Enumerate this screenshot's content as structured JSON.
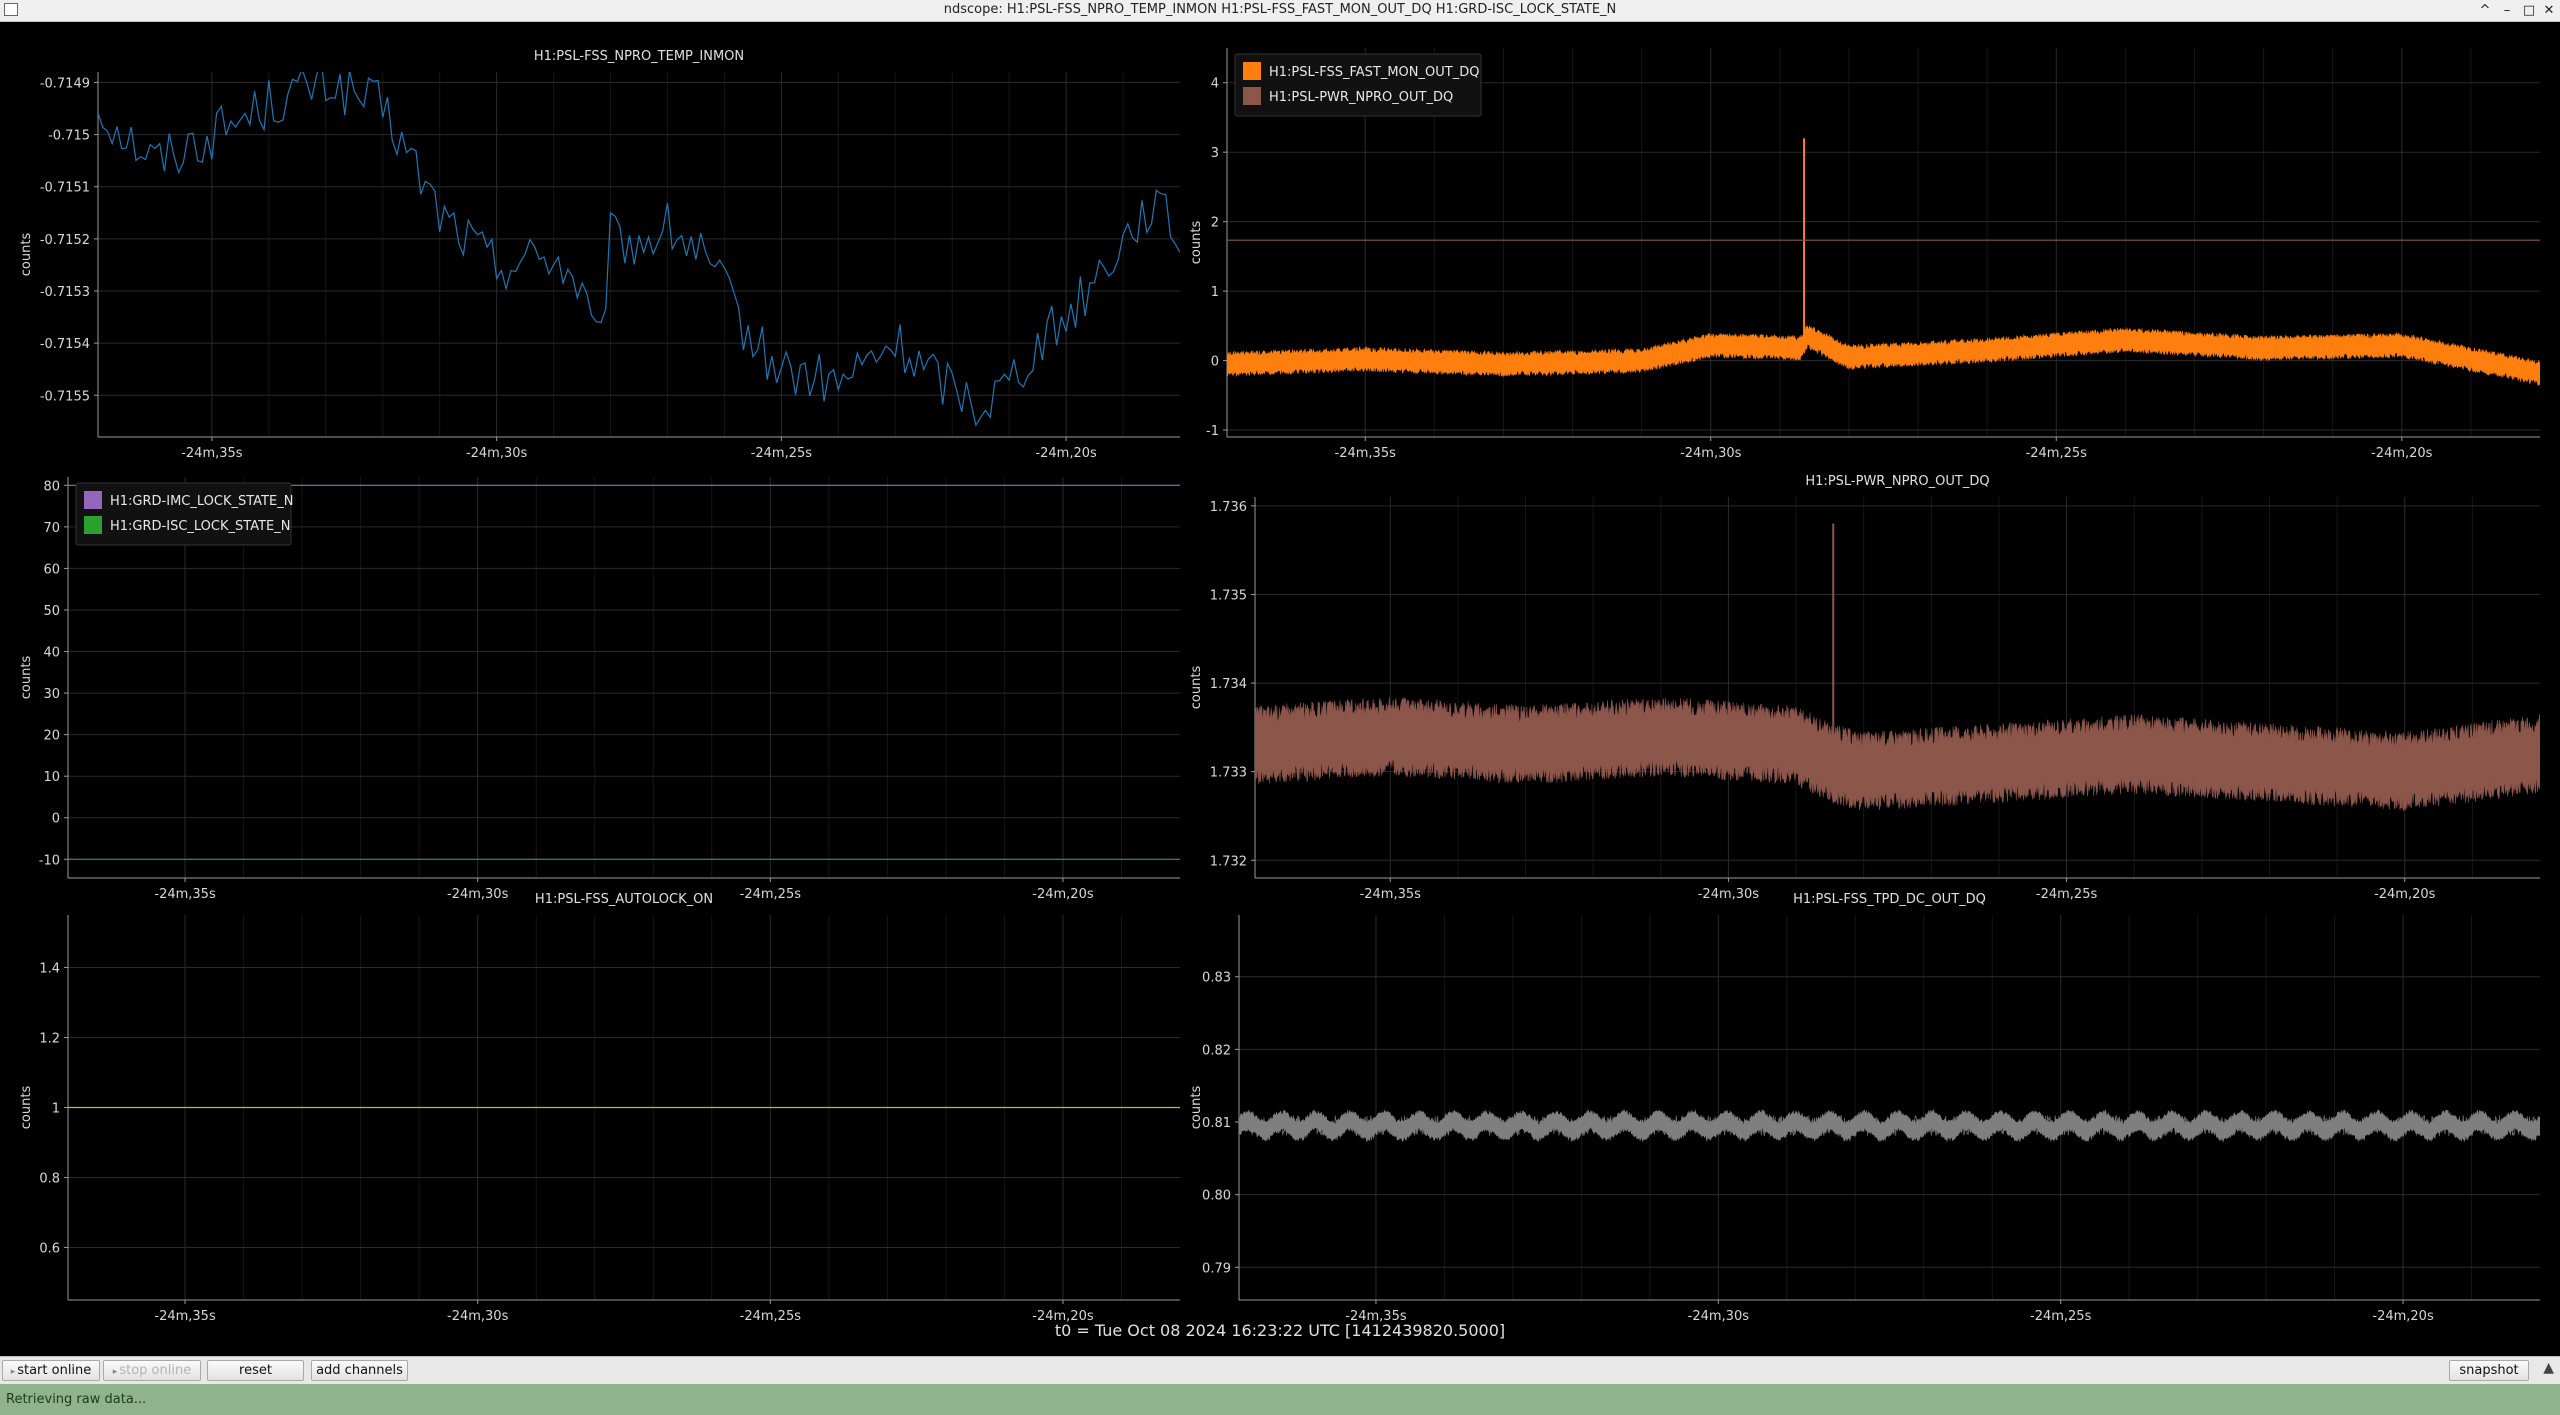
{
  "window": {
    "title": "ndscope: H1:PSL-FSS_NPRO_TEMP_INMON H1:PSL-FSS_FAST_MON_OUT_DQ H1:GRD-ISC_LOCK_STATE_N",
    "minimize": "–",
    "maximize": "□",
    "close": "✕",
    "collapse": "^"
  },
  "footer": {
    "t0": "t0 = Tue Oct 08 2024 16:23:22 UTC [1412439820.5000]"
  },
  "toolbar": {
    "start_online": "start online",
    "stop_online": "stop online",
    "reset": "reset",
    "add_channels": "add channels",
    "snapshot": "snapshot"
  },
  "status": {
    "message": "Retrieving raw data..."
  },
  "colors": {
    "blue": "#1f77b4",
    "orange": "#ff7f0e",
    "brown": "#8c564b",
    "purple": "#9467bd",
    "green": "#2ca02c",
    "olive": "#bcbd22",
    "gray": "#7f7f7f"
  },
  "chart_data": [
    {
      "type": "line",
      "title": "H1:PSL-FSS_NPRO_TEMP_INMON",
      "ylabel": "counts",
      "ylim": [
        -0.71558,
        -0.71488
      ],
      "yticks": [
        -0.7149,
        -0.715,
        -0.7151,
        -0.7152,
        -0.7153,
        -0.7154,
        -0.7155
      ],
      "ytick_labels": [
        "-0.7149",
        "-0.715",
        "-0.7151",
        "-0.7152",
        "-0.7153",
        "-0.7154",
        "-0.7155"
      ],
      "xlim": [
        -1477.0,
        -1458.0
      ],
      "xticks": [
        -1475,
        -1470,
        -1465,
        -1460
      ],
      "xtick_labels": [
        "-24m,35s",
        "-24m,30s",
        "-24m,25s",
        "-24m,20s"
      ],
      "grid": true,
      "series": [
        {
          "name": "",
          "color": "blue",
          "style": "line",
          "x": [
            -1477.0,
            -1476.0,
            -1475.0,
            -1474.0,
            -1473.0,
            -1472.0,
            -1471.5,
            -1471.0,
            -1470.5,
            -1470.0,
            -1469.0,
            -1468.5,
            -1468.2,
            -1468.0,
            -1467.5,
            -1467.0,
            -1466.5,
            -1466.0,
            -1465.5,
            -1465.0,
            -1464.0,
            -1463.0,
            -1462.5,
            -1462.0,
            -1461.5,
            -1461.0,
            -1460.5,
            -1460.0,
            -1459.0,
            -1458.5,
            -1458.0
          ],
          "y": [
            -0.71495,
            -0.71505,
            -0.715,
            -0.71494,
            -0.7149,
            -0.71495,
            -0.71505,
            -0.71515,
            -0.7152,
            -0.71525,
            -0.71523,
            -0.7153,
            -0.71543,
            -0.7152,
            -0.71521,
            -0.71518,
            -0.71522,
            -0.7153,
            -0.7154,
            -0.71545,
            -0.71548,
            -0.7154,
            -0.71545,
            -0.71548,
            -0.71552,
            -0.71547,
            -0.7154,
            -0.71535,
            -0.7152,
            -0.71513,
            -0.7152
          ],
          "noise": 5e-05,
          "noise_period": 0.25
        }
      ]
    },
    {
      "type": "line",
      "title": "",
      "ylabel": "counts",
      "ylim": [
        -1.1,
        4.5
      ],
      "yticks": [
        4,
        3,
        2,
        1,
        0,
        -1
      ],
      "ytick_labels": [
        "4",
        "3",
        "2",
        "1",
        "0",
        "-1"
      ],
      "xlim": [
        -1477.0,
        -1458.0
      ],
      "xticks": [
        -1475,
        -1470,
        -1465,
        -1460
      ],
      "xtick_labels": [
        "-24m,35s",
        "-24m,30s",
        "-24m,25s",
        "-24m,20s"
      ],
      "grid": true,
      "legend": "top-left",
      "series": [
        {
          "name": "H1:PSL-FSS_FAST_MON_OUT_DQ",
          "color": "orange",
          "style": "band",
          "x": [
            -1477.0,
            -1475.0,
            -1473.0,
            -1471.0,
            -1470.0,
            -1468.7,
            -1468.6,
            -1468.0,
            -1466.0,
            -1464.0,
            -1462.0,
            -1460.0,
            -1458.0
          ],
          "y": [
            -0.05,
            0.02,
            -0.05,
            0.0,
            0.22,
            0.18,
            0.35,
            0.05,
            0.15,
            0.3,
            0.18,
            0.22,
            -0.18
          ],
          "band": 0.18,
          "spikes": [
            {
              "x": -1468.65,
              "y": 3.2
            }
          ]
        },
        {
          "name": "H1:PSL-PWR_NPRO_OUT_DQ",
          "color": "brown",
          "style": "line",
          "x": [
            -1477.0,
            -1458.0
          ],
          "y": [
            1.733,
            1.733
          ],
          "noise": 0.0,
          "noise_period": 1
        }
      ]
    },
    {
      "type": "line",
      "title": "",
      "ylabel": "counts",
      "ylim": [
        -14.5,
        82
      ],
      "yticks": [
        80,
        70,
        60,
        50,
        40,
        30,
        20,
        10,
        0,
        -10
      ],
      "ytick_labels": [
        "80",
        "70",
        "60",
        "50",
        "40",
        "30",
        "20",
        "10",
        "0",
        "-10"
      ],
      "xlim": [
        -1477.0,
        -1458.0
      ],
      "xticks": [
        -1475,
        -1470,
        -1465,
        -1460
      ],
      "xtick_labels": [
        "-24m,35s",
        "-24m,30s",
        "-24m,25s",
        "-24m,20s"
      ],
      "grid": true,
      "legend": "top-left",
      "series": [
        {
          "name": "H1:GRD-IMC_LOCK_STATE_N",
          "color": "purple",
          "style": "line",
          "x": [
            -1477.0,
            -1458.0
          ],
          "y": [
            80,
            80
          ],
          "noise": 0.0,
          "noise_period": 1
        },
        {
          "name": "H1:GRD-ISC_LOCK_STATE_N",
          "color": "green",
          "style": "line",
          "x": [
            -1477.0,
            -1458.0
          ],
          "y": [
            -10,
            -10
          ],
          "noise": 0.0,
          "noise_period": 1
        }
      ]
    },
    {
      "type": "line",
      "title": "H1:PSL-PWR_NPRO_OUT_DQ",
      "ylabel": "counts",
      "ylim": [
        1.7318,
        1.7361
      ],
      "yticks": [
        1.736,
        1.735,
        1.734,
        1.733,
        1.732
      ],
      "ytick_labels": [
        "1.736",
        "1.735",
        "1.734",
        "1.733",
        "1.732"
      ],
      "xlim": [
        -1477.0,
        -1458.0
      ],
      "xticks": [
        -1475,
        -1470,
        -1465,
        -1460
      ],
      "xtick_labels": [
        "-24m,35s",
        "-24m,30s",
        "-24m,25s",
        "-24m,20s"
      ],
      "grid": true,
      "series": [
        {
          "name": "",
          "color": "brown",
          "style": "band",
          "x": [
            -1477.0,
            -1475.0,
            -1473.0,
            -1471.0,
            -1469.0,
            -1468.5,
            -1468.0,
            -1466.0,
            -1464.0,
            -1462.0,
            -1460.0,
            -1458.0
          ],
          "y": [
            1.7333,
            1.7334,
            1.7333,
            1.7334,
            1.7333,
            1.7331,
            1.733,
            1.7331,
            1.7332,
            1.7331,
            1.733,
            1.7332
          ],
          "band": 0.00045,
          "spikes": [
            {
              "x": -1468.45,
              "y": 1.7358
            }
          ]
        }
      ]
    },
    {
      "type": "line",
      "title": "H1:PSL-FSS_AUTOLOCK_ON",
      "ylabel": "counts",
      "ylim": [
        0.45,
        1.55
      ],
      "yticks": [
        1.4,
        1.2,
        1,
        0.8,
        0.6
      ],
      "ytick_labels": [
        "1.4",
        "1.2",
        "1",
        "0.8",
        "0.6"
      ],
      "xlim": [
        -1477.0,
        -1458.0
      ],
      "xticks": [
        -1475,
        -1470,
        -1465,
        -1460
      ],
      "xtick_labels": [
        "-24m,35s",
        "-24m,30s",
        "-24m,25s",
        "-24m,20s"
      ],
      "grid": true,
      "series": [
        {
          "name": "",
          "color": "olive",
          "style": "line",
          "x": [
            -1477.0,
            -1458.0
          ],
          "y": [
            1,
            1
          ],
          "noise": 0.0,
          "noise_period": 1
        }
      ]
    },
    {
      "type": "line",
      "title": "H1:PSL-FSS_TPD_DC_OUT_DQ",
      "ylabel": "counts",
      "ylim": [
        0.7855,
        0.8385
      ],
      "yticks": [
        0.83,
        0.82,
        0.81,
        0.8,
        0.79
      ],
      "ytick_labels": [
        "0.83",
        "0.82",
        "0.81",
        "0.80",
        "0.79"
      ],
      "xlim": [
        -1477.0,
        -1458.0
      ],
      "xticks": [
        -1475,
        -1470,
        -1465,
        -1460
      ],
      "xtick_labels": [
        "-24m,35s",
        "-24m,30s",
        "-24m,25s",
        "-24m,20s"
      ],
      "grid": true,
      "series": [
        {
          "name": "",
          "color": "gray",
          "style": "band",
          "x": [
            -1477.0,
            -1458.0
          ],
          "y": [
            0.8095,
            0.8095
          ],
          "band": 0.0015,
          "wave_amp": 0.0007,
          "wave_period": 0.5
        }
      ]
    }
  ]
}
